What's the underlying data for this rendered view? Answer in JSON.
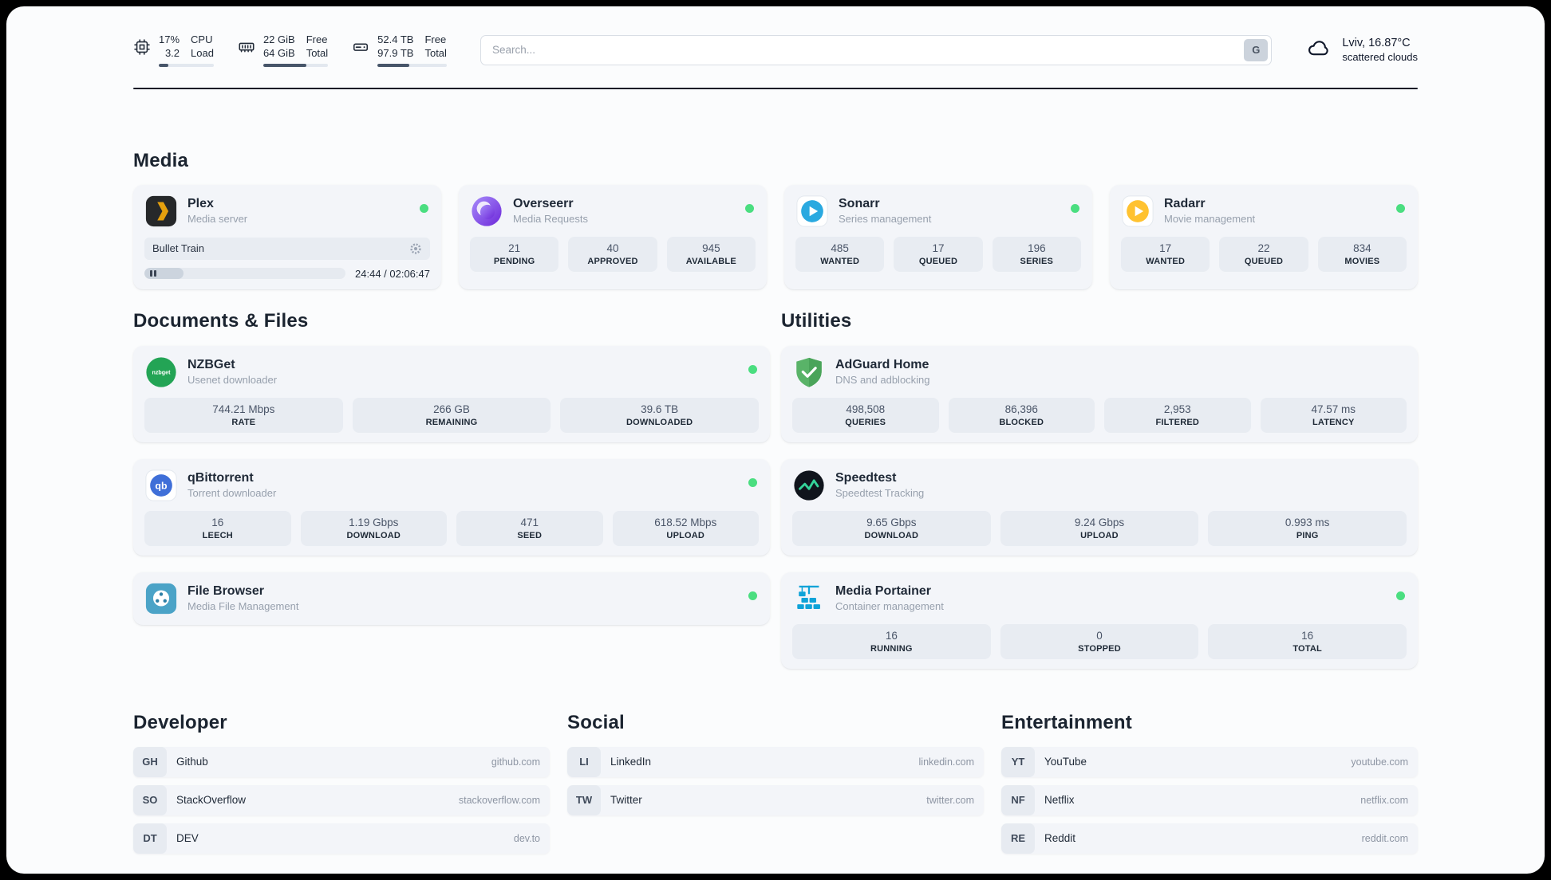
{
  "topbar": {
    "cpu": {
      "values": [
        "17%",
        "3.2"
      ],
      "labels": [
        "CPU",
        "Load"
      ],
      "progress": 17
    },
    "ram": {
      "values": [
        "22 GiB",
        "64 GiB"
      ],
      "labels": [
        "Free",
        "Total"
      ],
      "progress": 66
    },
    "disk": {
      "values": [
        "52.4 TB",
        "97.9 TB"
      ],
      "labels": [
        "Free",
        "Total"
      ],
      "progress": 46
    },
    "search": {
      "placeholder": "Search...",
      "button_label": "G"
    },
    "weather": {
      "location": "Lviv, 16.87°C",
      "condition": "scattered clouds"
    }
  },
  "colors": {
    "status_online": "#4ade80",
    "progress_fill": "#475569",
    "plex_amber": "#e5a00d",
    "sonarr_blue": "#2aa9e0",
    "radarr_amber": "#ffc230",
    "nzbget_green": "#23a455",
    "adguard_green": "#59b368",
    "qbittorrent_blue": "#3f6fd8",
    "speedtest_green": "#34d399",
    "filebrowser_teal": "#4ba3c7",
    "portainer_blue": "#0fa3d8"
  },
  "sections": {
    "media": {
      "title": "Media",
      "apps": [
        {
          "name": "Plex",
          "subtitle": "Media server",
          "online": true,
          "player": {
            "track": "Bullet Train",
            "time": "24:44 / 02:06:47",
            "progress": 19.5
          }
        },
        {
          "name": "Overseerr",
          "subtitle": "Media Requests",
          "online": true,
          "stats": [
            {
              "value": "21",
              "label": "PENDING"
            },
            {
              "value": "40",
              "label": "APPROVED"
            },
            {
              "value": "945",
              "label": "AVAILABLE"
            }
          ]
        },
        {
          "name": "Sonarr",
          "subtitle": "Series management",
          "online": true,
          "stats": [
            {
              "value": "485",
              "label": "WANTED"
            },
            {
              "value": "17",
              "label": "QUEUED"
            },
            {
              "value": "196",
              "label": "SERIES"
            }
          ]
        },
        {
          "name": "Radarr",
          "subtitle": "Movie management",
          "online": true,
          "stats": [
            {
              "value": "17",
              "label": "WANTED"
            },
            {
              "value": "22",
              "label": "QUEUED"
            },
            {
              "value": "834",
              "label": "MOVIES"
            }
          ]
        }
      ]
    },
    "documents": {
      "title": "Documents & Files",
      "apps": [
        {
          "name": "NZBGet",
          "subtitle": "Usenet downloader",
          "online": true,
          "stats": [
            {
              "value": "744.21 Mbps",
              "label": "RATE"
            },
            {
              "value": "266 GB",
              "label": "REMAINING"
            },
            {
              "value": "39.6 TB",
              "label": "DOWNLOADED"
            }
          ]
        },
        {
          "name": "qBittorrent",
          "subtitle": "Torrent downloader",
          "online": true,
          "stats": [
            {
              "value": "16",
              "label": "LEECH"
            },
            {
              "value": "1.19 Gbps",
              "label": "DOWNLOAD"
            },
            {
              "value": "471",
              "label": "SEED"
            },
            {
              "value": "618.52 Mbps",
              "label": "UPLOAD"
            }
          ]
        },
        {
          "name": "File Browser",
          "subtitle": "Media File Management",
          "online": true
        }
      ]
    },
    "utilities": {
      "title": "Utilities",
      "apps": [
        {
          "name": "AdGuard Home",
          "subtitle": "DNS and adblocking",
          "stats": [
            {
              "value": "498,508",
              "label": "QUERIES"
            },
            {
              "value": "86,396",
              "label": "BLOCKED"
            },
            {
              "value": "2,953",
              "label": "FILTERED"
            },
            {
              "value": "47.57 ms",
              "label": "LATENCY"
            }
          ]
        },
        {
          "name": "Speedtest",
          "subtitle": "Speedtest Tracking",
          "stats": [
            {
              "value": "9.65 Gbps",
              "label": "DOWNLOAD"
            },
            {
              "value": "9.24 Gbps",
              "label": "UPLOAD"
            },
            {
              "value": "0.993 ms",
              "label": "PING"
            }
          ]
        },
        {
          "name": "Media Portainer",
          "subtitle": "Container management",
          "online": true,
          "stats": [
            {
              "value": "16",
              "label": "RUNNING"
            },
            {
              "value": "0",
              "label": "STOPPED"
            },
            {
              "value": "16",
              "label": "TOTAL"
            }
          ]
        }
      ]
    },
    "developer": {
      "title": "Developer",
      "links": [
        {
          "abbr": "GH",
          "name": "Github",
          "url": "github.com"
        },
        {
          "abbr": "SO",
          "name": "StackOverflow",
          "url": "stackoverflow.com"
        },
        {
          "abbr": "DT",
          "name": "DEV",
          "url": "dev.to"
        }
      ]
    },
    "social": {
      "title": "Social",
      "links": [
        {
          "abbr": "LI",
          "name": "LinkedIn",
          "url": "linkedin.com"
        },
        {
          "abbr": "TW",
          "name": "Twitter",
          "url": "twitter.com"
        }
      ]
    },
    "entertainment": {
      "title": "Entertainment",
      "links": [
        {
          "abbr": "YT",
          "name": "YouTube",
          "url": "youtube.com"
        },
        {
          "abbr": "NF",
          "name": "Netflix",
          "url": "netflix.com"
        },
        {
          "abbr": "RE",
          "name": "Reddit",
          "url": "reddit.com"
        }
      ]
    }
  }
}
